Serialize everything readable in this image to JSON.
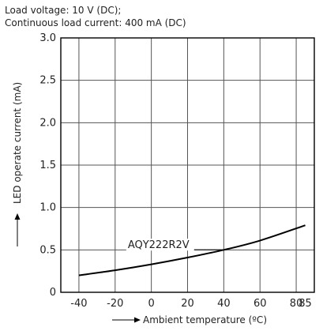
{
  "conditions": {
    "line1": "Load voltage: 10 V (DC);",
    "line2": "Continuous load current: 400 mA (DC)"
  },
  "chart_data": {
    "type": "line",
    "xlabel": "Ambient temperature (ºC)",
    "ylabel": "LED operate current (mA)",
    "xlim": [
      -50,
      90
    ],
    "ylim": [
      0,
      3.0
    ],
    "x_ticks": [
      -40,
      -20,
      0,
      20,
      40,
      60,
      80,
      85
    ],
    "x_tick_labels": [
      "-40",
      "-20",
      "0",
      "20",
      "40",
      "60",
      "80",
      "85"
    ],
    "y_ticks": [
      0,
      0.5,
      1.0,
      1.5,
      2.0,
      2.5,
      3.0
    ],
    "y_tick_labels": [
      "0",
      "0.5",
      "1.0",
      "1.5",
      "2.0",
      "2.5",
      "3.0"
    ],
    "grid": true,
    "series": [
      {
        "name": "AQY222R2V",
        "x": [
          -40,
          -20,
          0,
          20,
          40,
          60,
          85
        ],
        "y": [
          0.2,
          0.26,
          0.33,
          0.41,
          0.5,
          0.61,
          0.79
        ]
      }
    ],
    "annotation": "AQY222R2V",
    "colors": {
      "line": "#000000",
      "grid": "#555555",
      "frame": "#000000"
    }
  }
}
